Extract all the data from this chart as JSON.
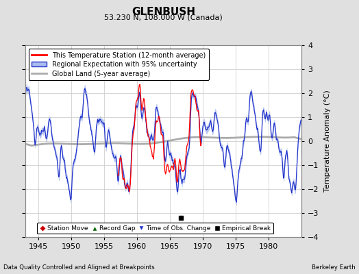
{
  "title": "GLENBUSH",
  "subtitle": "53.230 N, 108.000 W (Canada)",
  "ylabel": "Temperature Anomaly (°C)",
  "xlim": [
    1943.0,
    1985.0
  ],
  "ylim": [
    -4,
    4
  ],
  "xticks": [
    1945,
    1950,
    1955,
    1960,
    1965,
    1970,
    1975,
    1980
  ],
  "yticks": [
    -4,
    -3,
    -2,
    -1,
    0,
    1,
    2,
    3,
    4
  ],
  "background_color": "#e0e0e0",
  "plot_bg_color": "#ffffff",
  "grid_color": "#cccccc",
  "footer_left": "Data Quality Controlled and Aligned at Breakpoints",
  "footer_right": "Berkeley Earth",
  "legend_line1": "This Temperature Station (12-month average)",
  "legend_line2": "Regional Expectation with 95% uncertainty",
  "legend_line3": "Global Land (5-year average)",
  "station_color": "#ff0000",
  "regional_color": "#2233cc",
  "regional_fill_color": "#aabbee",
  "global_color": "#aaaaaa",
  "empirical_break_x": 1966.7,
  "empirical_break_y": -3.2,
  "station_start": 1957.0,
  "station_end": 1969.8
}
